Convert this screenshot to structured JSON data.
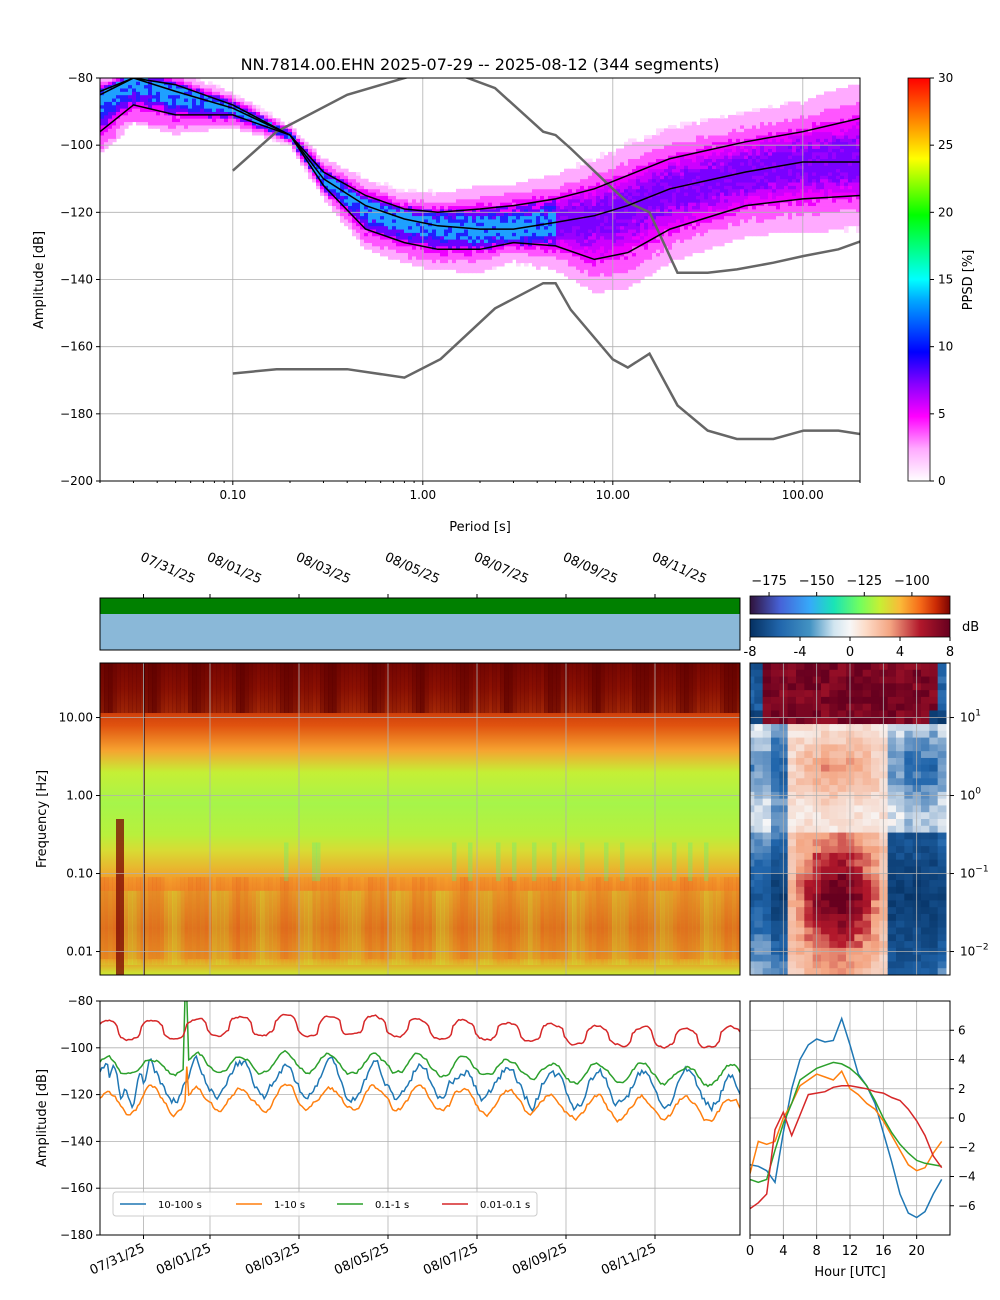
{
  "chart_data": [
    {
      "type": "heatmap",
      "panel": "ppsd",
      "title": "NN.7814.00.EHN   2025-07-29 -- 2025-08-12  (344 segments)",
      "xlabel": "Period [s]",
      "ylabel": "Amplitude [dB]",
      "x_scale": "log",
      "xlim": [
        0.02,
        200
      ],
      "ylim": [
        -200,
        -80
      ],
      "x_ticks": [
        0.1,
        1,
        10,
        100
      ],
      "x_tick_labels": [
        "0.10",
        "1.00",
        "10.00",
        "100.00"
      ],
      "y_ticks": [
        -200,
        -180,
        -160,
        -140,
        -120,
        -100,
        -80
      ],
      "grid": true,
      "colorbar": {
        "label": "PPSD [%]",
        "range": [
          0,
          30
        ],
        "ticks": [
          0,
          5,
          10,
          15,
          20,
          25,
          30
        ]
      },
      "percentile_curves": [
        {
          "x": [
            0.02,
            0.03,
            0.05,
            0.1,
            0.2,
            0.3,
            0.5,
            0.8,
            1.2,
            2,
            3,
            5,
            8,
            12,
            20,
            50,
            100,
            200
          ],
          "y": [
            -96,
            -88,
            -91,
            -91,
            -97,
            -112,
            -125,
            -129,
            -131,
            -131,
            -129,
            -130,
            -134,
            -132,
            -125,
            -118,
            -116,
            -115
          ]
        },
        {
          "x": [
            0.02,
            0.03,
            0.05,
            0.1,
            0.2,
            0.3,
            0.5,
            0.8,
            1.2,
            2,
            3,
            5,
            8,
            12,
            20,
            50,
            100,
            200
          ],
          "y": [
            -85,
            -80,
            -84,
            -89,
            -97,
            -110,
            -118,
            -122,
            -124,
            -125,
            -125,
            -123,
            -121,
            -118,
            -113,
            -108,
            -105,
            -105
          ]
        },
        {
          "x": [
            0.02,
            0.03,
            0.05,
            0.1,
            0.2,
            0.3,
            0.5,
            0.8,
            1.2,
            2,
            3,
            5,
            8,
            12,
            20,
            50,
            100,
            200
          ],
          "y": [
            -84,
            -80,
            -82,
            -88,
            -97,
            -108,
            -115,
            -119,
            -120,
            -119,
            -118,
            -116,
            -113,
            -109,
            -104,
            -99,
            -96,
            -92
          ]
        }
      ],
      "nhnm": {
        "x": [
          0.1,
          0.17,
          0.4,
          0.8,
          1.24,
          2.4,
          4.3,
          5,
          6,
          10,
          12,
          15.6,
          21.9,
          31.6,
          45,
          70,
          101,
          154,
          200
        ],
        "y": [
          -107.6,
          -96,
          -85,
          -80,
          -77,
          -83,
          -96,
          -97,
          -101,
          -113,
          -117,
          -120,
          -138,
          -138,
          -137,
          -135,
          -133,
          -131,
          -128.7
        ]
      },
      "nlnm": {
        "x": [
          0.1,
          0.17,
          0.4,
          0.8,
          1.24,
          2.4,
          4.3,
          5,
          6,
          10,
          12,
          15.6,
          21.9,
          31.6,
          45,
          70,
          101,
          154,
          200
        ],
        "y": [
          -168,
          -166.7,
          -166.7,
          -169.2,
          -163.7,
          -148.6,
          -141.1,
          -141.1,
          -149,
          -163.8,
          -166.2,
          -162.1,
          -177.5,
          -185,
          -187.5,
          -187.5,
          -185,
          -185,
          -186
        ]
      }
    },
    {
      "type": "heatmap",
      "panel": "spectrogram",
      "ylabel": "Frequency [Hz]",
      "y_scale": "log",
      "ylim": [
        0.005,
        50
      ],
      "y_tick_labels": [
        "0.01",
        "0.10",
        "1.00",
        "10.00"
      ],
      "x_dates": [
        "07/31/25",
        "08/01/25",
        "08/03/25",
        "08/05/25",
        "08/07/25",
        "08/09/25",
        "08/11/25"
      ],
      "colorbar": {
        "range": [
          -185,
          -80
        ],
        "ticks": [
          -175,
          -150,
          -125,
          -100
        ]
      },
      "data_availability": {
        "bar_colors": [
          "#008000",
          "#8ab8d8"
        ]
      }
    },
    {
      "type": "heatmap",
      "panel": "diurnal_deviation",
      "x_range": [
        0,
        24
      ],
      "y_scale": "log",
      "y_tick_labels": [
        "10^1",
        "10^0",
        "10^-1",
        "10^-2"
      ],
      "colorbar": {
        "label": "dB",
        "range": [
          -8,
          8
        ],
        "ticks": [
          -8,
          -4,
          0,
          4,
          8
        ]
      }
    },
    {
      "type": "line",
      "panel": "band_timeseries",
      "ylabel": "Amplitude [dB]",
      "ylim": [
        -180,
        -80
      ],
      "y_ticks": [
        -180,
        -160,
        -140,
        -120,
        -100,
        -80
      ],
      "x_dates": [
        "07/31/25",
        "08/01/25",
        "08/03/25",
        "08/05/25",
        "08/07/25",
        "08/09/25",
        "08/11/25"
      ],
      "legend": "lower-left",
      "series": [
        {
          "name": "10-100 s",
          "color": "#1f77b4",
          "base": -116,
          "day_amp": 7,
          "noise": 4
        },
        {
          "name": "1-10 s",
          "color": "#ff7f0e",
          "base": -124,
          "day_amp": 5,
          "noise": 2
        },
        {
          "name": "0.1-1 s",
          "color": "#2ca02c",
          "base": -109,
          "day_amp": 4,
          "noise": 1.5
        },
        {
          "name": "0.01-0.1 s",
          "color": "#d62728",
          "base": -93,
          "day_amp": 4,
          "noise": 1
        }
      ]
    },
    {
      "type": "line",
      "panel": "diurnal_band_deviation",
      "xlabel": "Hour [UTC]",
      "x": [
        0,
        1,
        2,
        3,
        4,
        5,
        6,
        7,
        8,
        9,
        10,
        11,
        12,
        13,
        14,
        15,
        16,
        17,
        18,
        19,
        20,
        21,
        22,
        23
      ],
      "x_ticks": [
        0,
        4,
        8,
        12,
        16,
        20
      ],
      "y_ticks": [
        -6,
        -4,
        -2,
        0,
        2,
        4,
        6
      ],
      "ylim": [
        -8,
        8
      ],
      "series": [
        {
          "name": "10-100 s",
          "color": "#1f77b4",
          "values": [
            -3.2,
            -3.3,
            -3.6,
            -4.4,
            -1.0,
            2.0,
            4.0,
            5.0,
            5.4,
            5.2,
            5.3,
            6.8,
            5.0,
            3.0,
            2.2,
            1.0,
            -1.0,
            -3.0,
            -5.2,
            -6.5,
            -6.8,
            -6.4,
            -5.2,
            -4.2
          ]
        },
        {
          "name": "1-10 s",
          "color": "#ff7f0e",
          "values": [
            -3.8,
            -1.6,
            -1.8,
            -1.6,
            0.0,
            1.0,
            2.2,
            2.6,
            3.0,
            2.8,
            2.6,
            3.2,
            2.0,
            1.6,
            1.0,
            0.6,
            -0.2,
            -1.2,
            -2.2,
            -3.2,
            -3.6,
            -3.4,
            -2.4,
            -1.6
          ]
        },
        {
          "name": "0.1-1 s",
          "color": "#2ca02c",
          "values": [
            -4.2,
            -4.4,
            -4.2,
            -2.2,
            -0.4,
            1.0,
            2.6,
            3.0,
            3.4,
            3.6,
            3.8,
            3.7,
            3.4,
            2.9,
            2.2,
            1.2,
            0.0,
            -1.0,
            -1.8,
            -2.4,
            -2.9,
            -3.1,
            -3.2,
            -3.3
          ]
        },
        {
          "name": "0.01-0.1 s",
          "color": "#d62728",
          "values": [
            -6.2,
            -5.8,
            -5.2,
            -0.8,
            0.4,
            -1.2,
            0.2,
            1.6,
            1.7,
            1.8,
            2.1,
            2.2,
            2.2,
            2.1,
            2.0,
            1.8,
            1.7,
            1.4,
            1.2,
            0.6,
            -0.2,
            -1.2,
            -2.6,
            -3.4
          ]
        }
      ]
    }
  ]
}
